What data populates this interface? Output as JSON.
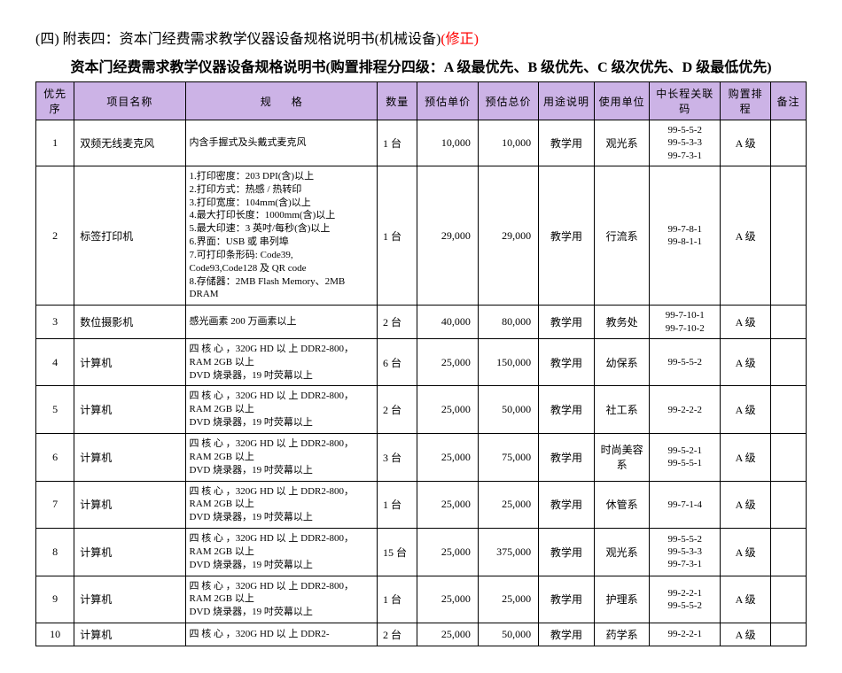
{
  "title_prefix": "(四) 附表四：资本门经费需求教学仪器设备规格说明书(机械设备)",
  "title_suffix": "(修正)",
  "subtitle": "资本门经费需求教学仪器设备规格说明书(购置排程分四级：A 级最优先、B 级优先、C 级次优先、D 级最低优先)",
  "headers": {
    "priority": "优先序",
    "name": "项目名称",
    "spec": "规  格",
    "qty": "数量",
    "unit_price": "预估单价",
    "total_price": "预估总价",
    "usage": "用途说明",
    "dept": "使用单位",
    "code": "中长程关联码",
    "rank": "购置排程",
    "note": "备注"
  },
  "rows": [
    {
      "priority": "1",
      "name": "双频无线麦克风",
      "spec": "内含手握式及头戴式麦克风",
      "qty": "1 台",
      "unit_price": "10,000",
      "total_price": "10,000",
      "usage": "教学用",
      "dept": "观光系",
      "code": "99-5-5-2\n99-5-3-3\n99-7-3-1",
      "rank": "A 级",
      "note": ""
    },
    {
      "priority": "2",
      "name": "标签打印机",
      "spec": "1.打印密度：203 DPI(含)以上\n2.打印方式：热感 / 热转印\n3.打印宽度：104mm(含)以上\n4.最大打印长度：1000mm(含)以上\n5.最大印速：3 英吋/每秒(含)以上\n6.界面：USB 或 串列埠\n7.可打印条形码: Code39,\n  Code93,Code128 及 QR code\n8.存储器：2MB Flash Memory、2MB\n  DRAM",
      "qty": "1 台",
      "unit_price": "29,000",
      "total_price": "29,000",
      "usage": "教学用",
      "dept": "行流系",
      "code": "99-7-8-1\n99-8-1-1",
      "rank": "A 级",
      "note": ""
    },
    {
      "priority": "3",
      "name": "数位摄影机",
      "spec": "感光画素 200 万画素以上",
      "qty": "2 台",
      "unit_price": "40,000",
      "total_price": "80,000",
      "usage": "教学用",
      "dept": "教务处",
      "code": "99-7-10-1\n99-7-10-2",
      "rank": "A 级",
      "note": ""
    },
    {
      "priority": "4",
      "name": "计算机",
      "spec": "四 核 心 ，320G HD 以 上  DDR2-800，RAM 2GB 以上\nDVD 烧录器，19 吋荧幕以上",
      "qty": "6 台",
      "unit_price": "25,000",
      "total_price": "150,000",
      "usage": "教学用",
      "dept": "幼保系",
      "code": "99-5-5-2",
      "rank": "A 级",
      "note": ""
    },
    {
      "priority": "5",
      "name": "计算机",
      "spec": "四 核 心 ，320G HD 以 上  DDR2-800，RAM 2GB 以上\nDVD 烧录器，19 吋荧幕以上",
      "qty": "2 台",
      "unit_price": "25,000",
      "total_price": "50,000",
      "usage": "教学用",
      "dept": "社工系",
      "code": "99-2-2-2",
      "rank": "A 级",
      "note": ""
    },
    {
      "priority": "6",
      "name": "计算机",
      "spec": "四 核 心 ，320G HD 以 上  DDR2-800，RAM 2GB 以上\nDVD 烧录器，19 吋荧幕以上",
      "qty": "3 台",
      "unit_price": "25,000",
      "total_price": "75,000",
      "usage": "教学用",
      "dept": "时尚美容系",
      "code": "99-5-2-1\n99-5-5-1",
      "rank": "A 级",
      "note": ""
    },
    {
      "priority": "7",
      "name": "计算机",
      "spec": "四 核 心 ，320G HD 以 上  DDR2-800，RAM 2GB 以上\nDVD 烧录器，19 吋荧幕以上",
      "qty": "1 台",
      "unit_price": "25,000",
      "total_price": "25,000",
      "usage": "教学用",
      "dept": "休管系",
      "code": "99-7-1-4",
      "rank": "A 级",
      "note": ""
    },
    {
      "priority": "8",
      "name": "计算机",
      "spec": "四 核 心 ，320G HD 以 上  DDR2-800，RAM 2GB 以上\nDVD 烧录器，19 吋荧幕以上",
      "qty": "15 台",
      "unit_price": "25,000",
      "total_price": "375,000",
      "usage": "教学用",
      "dept": "观光系",
      "code": "99-5-5-2\n99-5-3-3\n99-7-3-1",
      "rank": "A 级",
      "note": ""
    },
    {
      "priority": "9",
      "name": "计算机",
      "spec": "四 核 心 ，320G HD 以 上  DDR2-800，RAM 2GB 以上\nDVD 烧录器，19 吋荧幕以上",
      "qty": "1 台",
      "unit_price": "25,000",
      "total_price": "25,000",
      "usage": "教学用",
      "dept": "护理系",
      "code": "99-2-2-1\n99-5-5-2",
      "rank": "A 级",
      "note": ""
    },
    {
      "priority": "10",
      "name": "计算机",
      "spec": "四 核 心 ，320G HD 以 上  DDR2-",
      "qty": "2 台",
      "unit_price": "25,000",
      "total_price": "50,000",
      "usage": "教学用",
      "dept": "药学系",
      "code": "99-2-2-1",
      "rank": "A 级",
      "note": ""
    }
  ]
}
